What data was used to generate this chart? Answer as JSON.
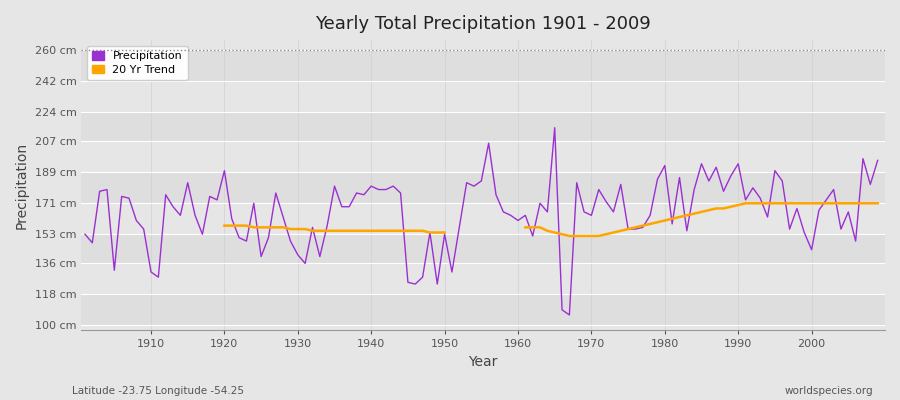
{
  "title": "Yearly Total Precipitation 1901 - 2009",
  "xlabel": "Year",
  "ylabel": "Precipitation",
  "bottom_left": "Latitude -23.75 Longitude -54.25",
  "bottom_right": "worldspecies.org",
  "years": [
    1901,
    1902,
    1903,
    1904,
    1905,
    1906,
    1907,
    1908,
    1909,
    1910,
    1911,
    1912,
    1913,
    1914,
    1915,
    1916,
    1917,
    1918,
    1919,
    1920,
    1921,
    1922,
    1923,
    1924,
    1925,
    1926,
    1927,
    1928,
    1929,
    1930,
    1931,
    1932,
    1933,
    1934,
    1935,
    1936,
    1937,
    1938,
    1939,
    1940,
    1941,
    1942,
    1943,
    1944,
    1945,
    1946,
    1947,
    1948,
    1949,
    1950,
    1951,
    1952,
    1953,
    1954,
    1955,
    1956,
    1957,
    1958,
    1959,
    1960,
    1961,
    1962,
    1963,
    1964,
    1965,
    1966,
    1967,
    1968,
    1969,
    1970,
    1971,
    1972,
    1973,
    1974,
    1975,
    1976,
    1977,
    1978,
    1979,
    1980,
    1981,
    1982,
    1983,
    1984,
    1985,
    1986,
    1987,
    1988,
    1989,
    1990,
    1991,
    1992,
    1993,
    1994,
    1995,
    1996,
    1997,
    1998,
    1999,
    2000,
    2001,
    2002,
    2003,
    2004,
    2005,
    2006,
    2007,
    2008,
    2009
  ],
  "precip": [
    153,
    148,
    178,
    179,
    132,
    175,
    174,
    161,
    156,
    131,
    128,
    176,
    169,
    164,
    183,
    164,
    153,
    175,
    173,
    190,
    162,
    151,
    149,
    171,
    140,
    151,
    177,
    163,
    149,
    141,
    136,
    157,
    140,
    158,
    181,
    169,
    169,
    177,
    176,
    181,
    179,
    179,
    181,
    177,
    125,
    124,
    128,
    154,
    124,
    153,
    131,
    157,
    183,
    181,
    184,
    206,
    176,
    166,
    164,
    161,
    164,
    152,
    171,
    166,
    215,
    109,
    106,
    183,
    166,
    164,
    179,
    172,
    166,
    182,
    156,
    156,
    157,
    164,
    185,
    193,
    159,
    186,
    155,
    179,
    194,
    184,
    192,
    178,
    187,
    194,
    173,
    180,
    174,
    163,
    190,
    184,
    156,
    168,
    154,
    144,
    167,
    173,
    179,
    156,
    166,
    149,
    197,
    182,
    196
  ],
  "trend": [
    null,
    null,
    null,
    null,
    null,
    null,
    null,
    null,
    null,
    null,
    null,
    null,
    null,
    null,
    null,
    null,
    null,
    null,
    null,
    158,
    158,
    158,
    158,
    157,
    157,
    157,
    157,
    157,
    156,
    156,
    156,
    155,
    155,
    155,
    155,
    155,
    155,
    155,
    155,
    155,
    155,
    155,
    155,
    155,
    155,
    155,
    155,
    154,
    154,
    154,
    null,
    null,
    null,
    null,
    null,
    null,
    null,
    null,
    null,
    null,
    157,
    157,
    157,
    155,
    154,
    153,
    152,
    152,
    152,
    152,
    152,
    153,
    154,
    155,
    156,
    157,
    158,
    159,
    160,
    161,
    162,
    163,
    164,
    165,
    166,
    167,
    168,
    168,
    169,
    170,
    171,
    171,
    171,
    171,
    171,
    171,
    171,
    171,
    171,
    171,
    171,
    171,
    171,
    171,
    171,
    171,
    171,
    171,
    171
  ],
  "precip_color": "#9b30d0",
  "trend_color": "#ffa500",
  "bg_color": "#e6e6e6",
  "plot_bg_color": "#e6e6e6",
  "grid_color": "#ffffff",
  "yticks": [
    100,
    118,
    136,
    153,
    171,
    189,
    207,
    224,
    242,
    260
  ],
  "ytick_labels": [
    "100 cm",
    "118 cm",
    "136 cm",
    "153 cm",
    "171 cm",
    "189 cm",
    "207 cm",
    "224 cm",
    "242 cm",
    "260 cm"
  ],
  "ylim": [
    97,
    266
  ],
  "xlim": [
    1900.5,
    2010
  ]
}
